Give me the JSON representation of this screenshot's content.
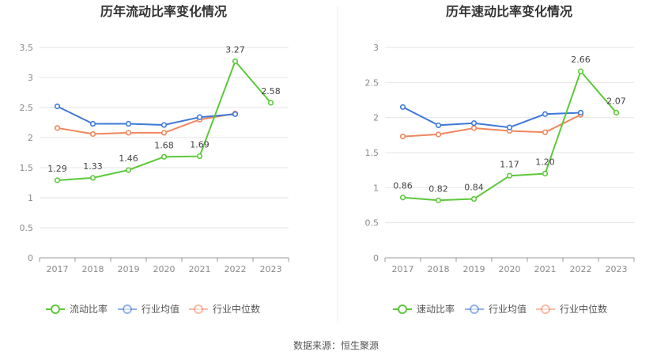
{
  "source": "数据来源：恒生聚源",
  "colors": {
    "main": "#5cc93a",
    "avg": "#3d78d8",
    "median": "#f0865c",
    "grid": "#e6e6e6",
    "axis": "#999999"
  },
  "chart_data": [
    {
      "type": "line",
      "title": "历年流动比率变化情况",
      "categories": [
        "2017",
        "2018",
        "2019",
        "2020",
        "2021",
        "2022",
        "2023"
      ],
      "ylim": [
        0,
        3.5
      ],
      "yticks": [
        "0",
        "0.5",
        "1",
        "1.5",
        "2",
        "2.5",
        "3",
        "3.5"
      ],
      "grid": true,
      "legend": "bottom",
      "series": [
        {
          "name": "流动比率",
          "key": "main",
          "values": [
            1.29,
            1.33,
            1.46,
            1.68,
            1.69,
            3.27,
            2.58
          ],
          "labels": [
            "1.29",
            "1.33",
            "1.46",
            "1.68",
            "1.69",
            "3.27",
            "2.58"
          ]
        },
        {
          "name": "行业均值",
          "key": "avg",
          "values": [
            2.52,
            2.23,
            2.23,
            2.21,
            2.34,
            2.39,
            null
          ]
        },
        {
          "name": "行业中位数",
          "key": "median",
          "values": [
            2.16,
            2.06,
            2.08,
            2.08,
            2.3,
            2.4,
            null
          ]
        }
      ]
    },
    {
      "type": "line",
      "title": "历年速动比率变化情况",
      "categories": [
        "2017",
        "2018",
        "2019",
        "2020",
        "2021",
        "2022",
        "2023"
      ],
      "ylim": [
        0,
        3
      ],
      "yticks": [
        "0",
        "0.5",
        "1",
        "1.5",
        "2",
        "2.5",
        "3"
      ],
      "grid": true,
      "legend": "bottom",
      "series": [
        {
          "name": "速动比率",
          "key": "main",
          "values": [
            0.86,
            0.82,
            0.84,
            1.17,
            1.2,
            2.66,
            2.07
          ],
          "labels": [
            "0.86",
            "0.82",
            "0.84",
            "1.17",
            "1.20",
            "2.66",
            "2.07"
          ]
        },
        {
          "name": "行业均值",
          "key": "avg",
          "values": [
            2.15,
            1.89,
            1.92,
            1.86,
            2.05,
            2.07,
            null
          ]
        },
        {
          "name": "行业中位数",
          "key": "median",
          "values": [
            1.73,
            1.76,
            1.85,
            1.81,
            1.79,
            2.04,
            null
          ]
        }
      ]
    }
  ]
}
